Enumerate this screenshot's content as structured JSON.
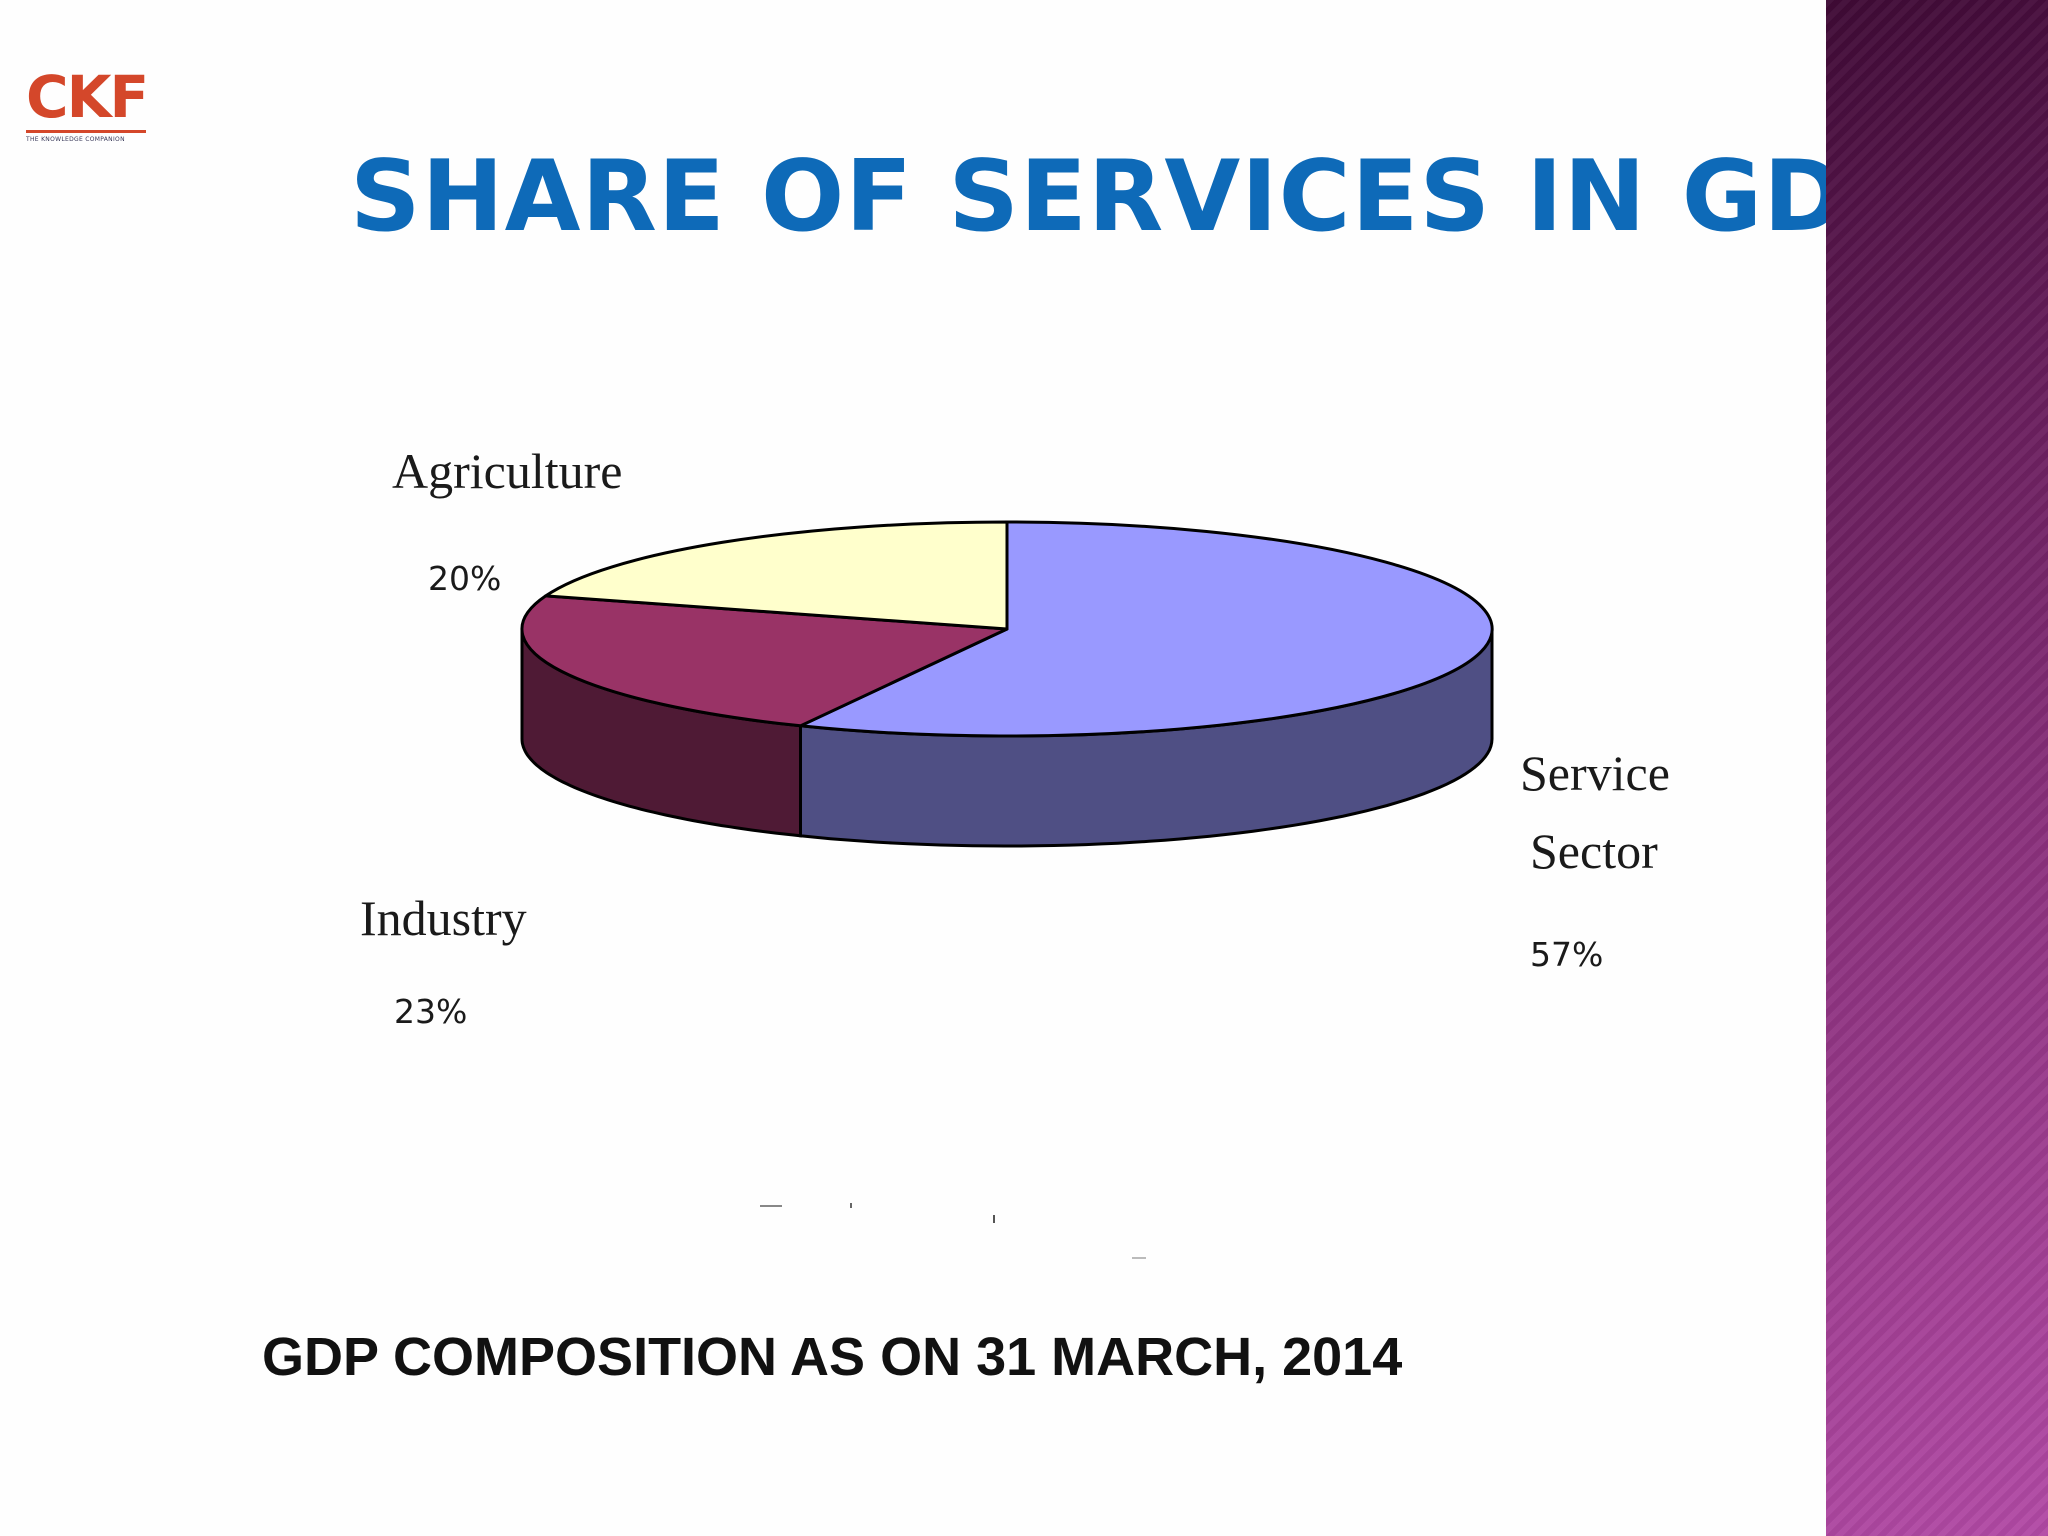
{
  "logo": {
    "text": "CKF",
    "tagline": "THE KNOWLEDGE COMPANION"
  },
  "title": "SHARE OF SERVICES IN GDP",
  "caption": "GDP COMPOSITION AS ON 31 MARCH, 2014",
  "colors": {
    "title": "#0e6ab8",
    "agriculture": "#ffffcc",
    "industry": "#993366",
    "service": "#9999ff",
    "side_band": "#8e3380"
  },
  "chart_data": {
    "type": "pie",
    "style": "3d",
    "categories": [
      "Service Sector",
      "Industry",
      "Agriculture"
    ],
    "values": [
      57,
      23,
      20
    ],
    "unit": "%",
    "labels": [
      {
        "name_lines": [
          "Service",
          "Sector"
        ],
        "value_label": "57%"
      },
      {
        "name_lines": [
          "Industry"
        ],
        "value_label": "23%"
      },
      {
        "name_lines": [
          "Agriculture"
        ],
        "value_label": "20%"
      }
    ],
    "colors": [
      "#9999ff",
      "#993366",
      "#ffffcc"
    ],
    "side_colors": [
      "#4f4f84",
      "#4f1a35",
      "#85856a"
    ]
  }
}
